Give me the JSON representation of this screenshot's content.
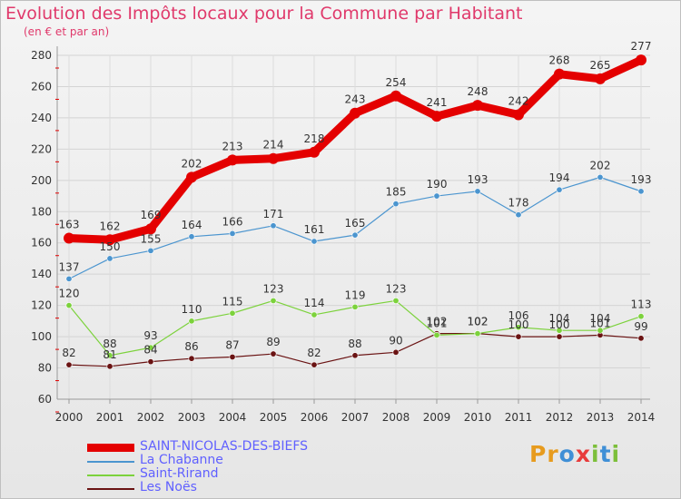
{
  "chart_data": {
    "type": "line",
    "title": "Evolution des Impôts locaux pour la Commune par Habitant",
    "subtitle": "(en € et par an)",
    "xlabel": "",
    "ylabel": "",
    "ylim": [
      60,
      280
    ],
    "yticks": [
      60,
      80,
      100,
      120,
      140,
      160,
      180,
      200,
      220,
      240,
      260,
      280
    ],
    "categories": [
      "2000",
      "2001",
      "2002",
      "2003",
      "2004",
      "2005",
      "2006",
      "2007",
      "2008",
      "2009",
      "2010",
      "2011",
      "2012",
      "2013",
      "2014"
    ],
    "series": [
      {
        "name": "SAINT-NICOLAS-DES-BIEFS",
        "color": "#e40000",
        "values": [
          163,
          162,
          169,
          202,
          213,
          214,
          218,
          243,
          254,
          241,
          248,
          242,
          268,
          265,
          277
        ]
      },
      {
        "name": "La Chabanne",
        "color": "#4b95cf",
        "values": [
          137,
          150,
          155,
          164,
          166,
          171,
          161,
          165,
          185,
          190,
          193,
          178,
          194,
          202,
          193
        ]
      },
      {
        "name": "Saint-Rirand",
        "color": "#7cd23c",
        "values": [
          120,
          88,
          93,
          110,
          115,
          123,
          114,
          119,
          123,
          101,
          102,
          106,
          104,
          104,
          113
        ]
      },
      {
        "name": "Les Noës",
        "color": "#6a1313",
        "values": [
          82,
          81,
          84,
          86,
          87,
          89,
          82,
          88,
          90,
          102,
          102,
          100,
          100,
          101,
          99
        ]
      }
    ],
    "legend_position": "bottom-left"
  },
  "legend": {
    "items": [
      {
        "label": "SAINT-NICOLAS-DES-BIEFS",
        "color": "#e40000",
        "label_color": "#6060ff"
      },
      {
        "label": "La Chabanne",
        "color": "#4b95cf",
        "label_color": "#6060ff"
      },
      {
        "label": "Saint-Rirand",
        "color": "#7cd23c",
        "label_color": "#6060ff"
      },
      {
        "label": "Les Noës",
        "color": "#6a1313",
        "label_color": "#6060ff"
      }
    ]
  },
  "logo": {
    "letters": [
      "P",
      "r",
      "o",
      "x",
      "i",
      "t",
      "i"
    ],
    "colors": [
      "#e79b1e",
      "#e79b1e",
      "#3f8fd6",
      "#e83b3b",
      "#7cbf3a",
      "#3f8fd6",
      "#7cbf3a"
    ]
  }
}
